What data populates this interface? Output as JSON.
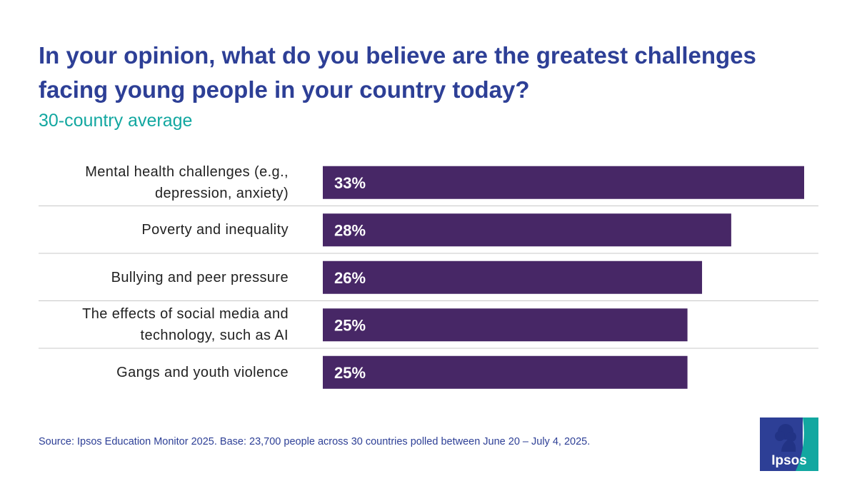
{
  "title": "In your opinion, what do you believe are the greatest challenges facing young people in your country today?",
  "subtitle": "30-country average",
  "source": "Source: Ipsos Education Monitor 2025. Base: 23,700 people across 30 countries polled between June 20 – July 4, 2025.",
  "logo": {
    "text": "Ipsos",
    "icon": "ipsos-logo-icon"
  },
  "colors": {
    "title": "#2d3f96",
    "subtitle": "#12a7a0",
    "bar": "#472766",
    "bar_label": "#ffffff",
    "divider": "#c8c8c8",
    "logo_blue": "#2d3f96",
    "logo_teal": "#12a7a0"
  },
  "chart_data": {
    "type": "bar",
    "orientation": "horizontal",
    "categories": [
      "Mental health challenges (e.g., depression, anxiety)",
      "Poverty and inequality",
      "Bullying and peer pressure",
      "The effects of social media and technology, such as AI",
      "Gangs and youth violence"
    ],
    "values": [
      33,
      28,
      26,
      25,
      25
    ],
    "value_labels": [
      "33%",
      "28%",
      "26%",
      "25%",
      "25%"
    ],
    "unit": "%",
    "xlim": [
      0,
      33
    ],
    "grid": false,
    "legend": "none"
  }
}
